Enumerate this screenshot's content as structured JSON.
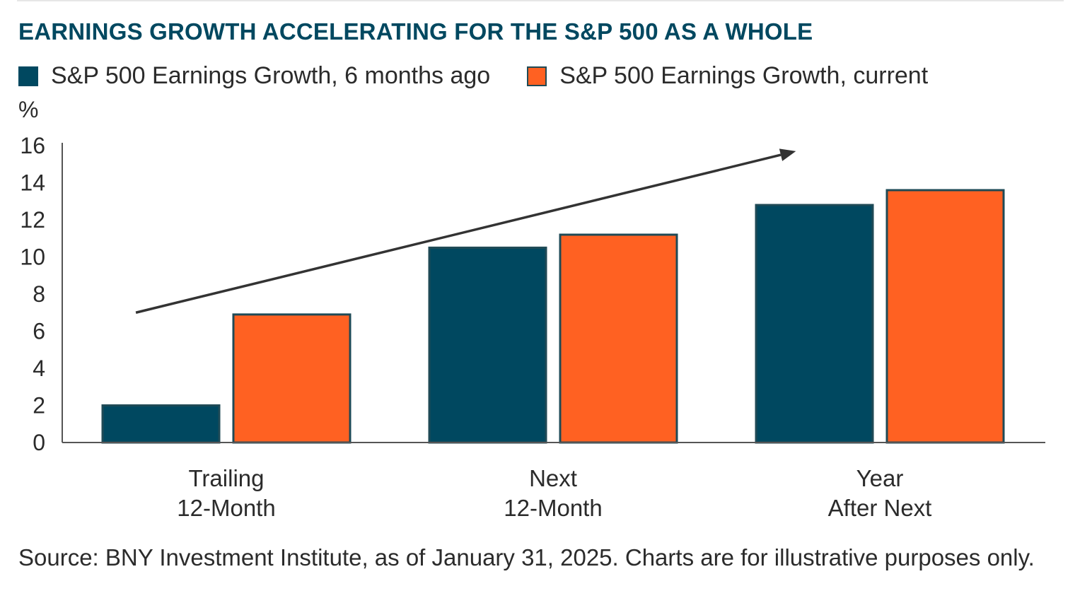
{
  "colors": {
    "title": "#004860",
    "series_1": "#004860",
    "series_2": "#FF6122",
    "bar_outline": "#1f4a56",
    "axis": "#555555",
    "arrow": "#333333",
    "text": "#2b2b2b"
  },
  "chart_data": {
    "type": "bar",
    "title": "EARNINGS GROWTH ACCELERATING FOR THE S&P 500 AS A WHOLE",
    "ylabel": "%",
    "xlabel": "",
    "ylim": [
      0,
      16
    ],
    "yticks": [
      "0",
      "2",
      "4",
      "6",
      "8",
      "10",
      "12",
      "14",
      "16"
    ],
    "categories": [
      [
        "Trailing",
        "12-Month"
      ],
      [
        "Next",
        "12-Month"
      ],
      [
        "Year",
        "After Next"
      ]
    ],
    "series": [
      {
        "name": "S&P 500 Earnings Growth, 6 months ago",
        "values": [
          2.0,
          10.5,
          12.8
        ]
      },
      {
        "name": "S&P 500 Earnings Growth, current",
        "values": [
          6.9,
          11.2,
          13.6
        ]
      }
    ],
    "annotations": [
      {
        "type": "trend-arrow",
        "from": [
          0.05,
          7.0
        ],
        "to": [
          2.07,
          15.7
        ]
      }
    ],
    "grid": false,
    "legend_position": "top-left"
  },
  "source": "Source: BNY Investment Institute, as of January 31, 2025. Charts are for illustrative purposes only."
}
